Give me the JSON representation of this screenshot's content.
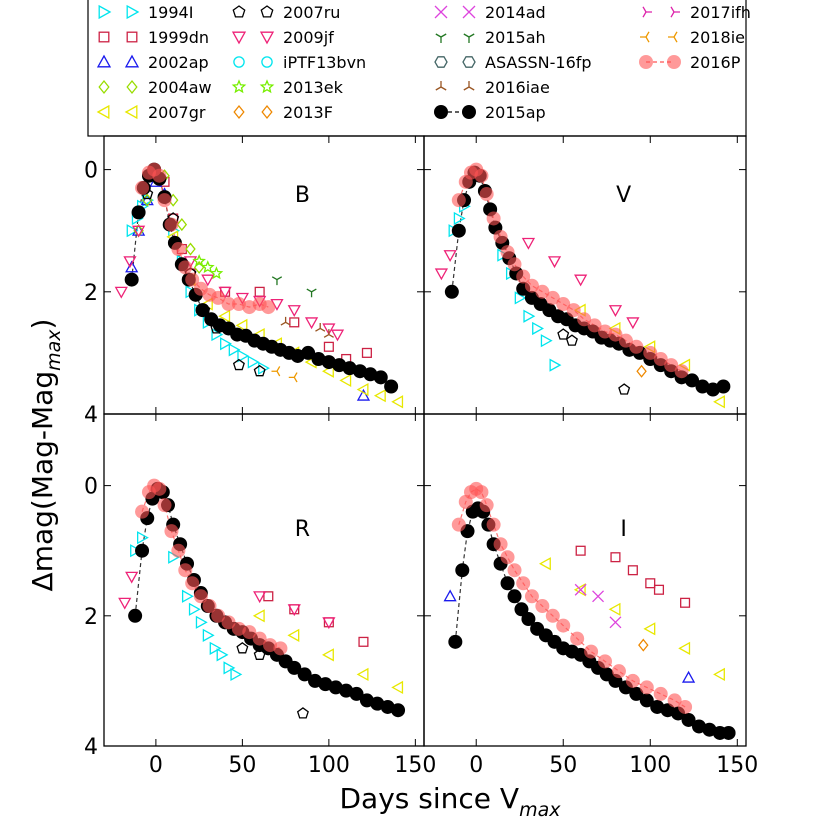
{
  "chart_data": {
    "type": "scatter",
    "xlabel": "Days since V",
    "xlabel_sub": "max",
    "ylabel": "Δmag(Mag-Mag",
    "ylabel_sub": "max",
    "ylabel_end": ")",
    "xlim": [
      -30,
      155
    ],
    "ylim": [
      4,
      -1.1
    ],
    "x_ticks": [
      0,
      50,
      100,
      150
    ],
    "y_ticks": [
      0,
      2,
      4
    ],
    "panels": [
      {
        "label": "B",
        "position": "top-left"
      },
      {
        "label": "V",
        "position": "top-right"
      },
      {
        "label": "R",
        "position": "bottom-left"
      },
      {
        "label": "I",
        "position": "bottom-right"
      }
    ],
    "legend": [
      {
        "name": "1994I",
        "marker": "tri-right",
        "color": "#00e5ee"
      },
      {
        "name": "1999dn",
        "marker": "square",
        "color": "#cc2244"
      },
      {
        "name": "2002ap",
        "marker": "tri-up",
        "color": "#1a1aee"
      },
      {
        "name": "2004aw",
        "marker": "diamond",
        "color": "#99dd00"
      },
      {
        "name": "2007gr",
        "marker": "tri-left",
        "color": "#e8e800"
      },
      {
        "name": "2007ru",
        "marker": "pentagon",
        "color": "#000000"
      },
      {
        "name": "2009jf",
        "marker": "tri-down",
        "color": "#ee2277"
      },
      {
        "name": "iPTF13bvn",
        "marker": "circle",
        "color": "#00e5ee"
      },
      {
        "name": "2013ek",
        "marker": "star",
        "color": "#77ee00"
      },
      {
        "name": "2013F",
        "marker": "diamond",
        "color": "#ee8800"
      },
      {
        "name": "2014ad",
        "marker": "x",
        "color": "#dd44dd"
      },
      {
        "name": "2015ah",
        "marker": "y-down",
        "color": "#227722"
      },
      {
        "name": "ASASSN-16fp",
        "marker": "hexagon",
        "color": "#446666"
      },
      {
        "name": "2016iae",
        "marker": "y-up",
        "color": "#995522"
      },
      {
        "name": "2015ap",
        "marker": "filled-circle-line",
        "color": "#000000"
      },
      {
        "name": "2017ifh",
        "marker": "y-left",
        "color": "#dd22aa"
      },
      {
        "name": "2018ie",
        "marker": "y-right",
        "color": "#ee9900"
      },
      {
        "name": "2016P",
        "marker": "filled-circle-line-alpha",
        "color": "#ff5555"
      }
    ],
    "series": [
      {
        "name": "2015ap",
        "band": "B",
        "x": [
          -14,
          -10,
          -7,
          -4,
          -1,
          2,
          5,
          8,
          11,
          15,
          19,
          23,
          27,
          32,
          37,
          42,
          47,
          52,
          57,
          62,
          67,
          72,
          77,
          82,
          88,
          94,
          100,
          106,
          112,
          118,
          124,
          130,
          136
        ],
        "y": [
          1.8,
          0.7,
          0.3,
          0.1,
          0.0,
          0.15,
          0.45,
          0.9,
          1.2,
          1.55,
          1.8,
          2.05,
          2.3,
          2.45,
          2.55,
          2.6,
          2.7,
          2.72,
          2.8,
          2.85,
          2.9,
          2.95,
          3.0,
          3.05,
          3.0,
          3.1,
          3.15,
          3.2,
          3.25,
          3.3,
          3.35,
          3.4,
          3.55
        ]
      },
      {
        "name": "2016P",
        "band": "B",
        "x": [
          -8,
          -4,
          -1,
          2,
          5,
          9,
          13,
          17,
          21,
          26,
          31,
          36,
          42,
          48,
          54,
          60,
          65
        ],
        "y": [
          0.3,
          0.05,
          0.0,
          0.1,
          0.5,
          0.9,
          1.3,
          1.6,
          1.8,
          1.95,
          2.05,
          2.1,
          2.2,
          2.2,
          2.25,
          2.2,
          2.25
        ]
      },
      {
        "name": "1994I",
        "band": "B",
        "x": [
          -14,
          -11,
          -8,
          -5,
          10,
          15,
          20,
          25,
          30,
          35,
          40,
          45,
          50,
          56,
          62
        ],
        "y": [
          1.0,
          0.8,
          0.6,
          0.5,
          1.0,
          1.5,
          2.0,
          2.3,
          2.5,
          2.7,
          2.85,
          2.95,
          3.05,
          3.15,
          3.25
        ]
      },
      {
        "name": "1999dn",
        "band": "B",
        "x": [
          5,
          10,
          15,
          20,
          40,
          60,
          80,
          100,
          110,
          122
        ],
        "y": [
          0.2,
          0.8,
          1.3,
          1.7,
          2.0,
          2.0,
          2.5,
          2.9,
          3.1,
          3.0
        ]
      },
      {
        "name": "2002ap",
        "band": "B",
        "x": [
          -14,
          -10,
          -5,
          0,
          5,
          120
        ],
        "y": [
          1.6,
          1.0,
          0.5,
          0.2,
          0.4,
          3.7
        ]
      },
      {
        "name": "2004aw",
        "band": "B",
        "x": [
          -10,
          -5,
          0,
          5,
          10,
          15,
          20,
          25
        ],
        "y": [
          1.0,
          0.5,
          0.1,
          0.1,
          0.5,
          0.9,
          1.3,
          1.6
        ]
      },
      {
        "name": "2007gr",
        "band": "B",
        "x": [
          10,
          20,
          30,
          40,
          50,
          60,
          70,
          80,
          90,
          100,
          110,
          120,
          130,
          140
        ],
        "y": [
          1.1,
          1.8,
          2.2,
          2.4,
          2.55,
          2.7,
          2.85,
          3.0,
          3.15,
          3.3,
          3.45,
          3.6,
          3.7,
          3.8
        ]
      },
      {
        "name": "2007ru",
        "band": "B",
        "x": [
          -5,
          0,
          10,
          20,
          28,
          35,
          48,
          60
        ],
        "y": [
          0.4,
          0.1,
          0.8,
          1.7,
          2.3,
          2.6,
          3.2,
          3.3
        ]
      },
      {
        "name": "2009jf",
        "band": "B",
        "x": [
          -20,
          -15,
          -10,
          20,
          30,
          40,
          50,
          60,
          70,
          80,
          90,
          100,
          105
        ],
        "y": [
          2.0,
          1.5,
          1.0,
          1.5,
          1.8,
          2.0,
          2.1,
          2.15,
          2.2,
          2.3,
          2.5,
          2.6,
          2.7
        ]
      },
      {
        "name": "2013ek",
        "band": "B",
        "x": [
          25,
          30,
          35
        ],
        "y": [
          1.5,
          1.6,
          1.7
        ]
      },
      {
        "name": "2015ah",
        "band": "B",
        "x": [
          70,
          90
        ],
        "y": [
          1.8,
          2.0
        ]
      },
      {
        "name": "2016iae",
        "band": "B",
        "x": [
          75,
          95,
          100
        ],
        "y": [
          2.5,
          2.6,
          2.7
        ]
      },
      {
        "name": "2018ie",
        "band": "B",
        "x": [
          70,
          80
        ],
        "y": [
          3.3,
          3.4
        ]
      },
      {
        "name": "2015ap",
        "band": "V",
        "x": [
          -14,
          -10,
          -7,
          -4,
          -1,
          2,
          5,
          8,
          11,
          15,
          19,
          23,
          27,
          32,
          37,
          42,
          47,
          52,
          57,
          62,
          67,
          72,
          77,
          82,
          88,
          94,
          100,
          106,
          112,
          118,
          124,
          130,
          136,
          142
        ],
        "y": [
          2.0,
          1.0,
          0.5,
          0.2,
          0.05,
          0.1,
          0.35,
          0.65,
          0.95,
          1.2,
          1.45,
          1.7,
          1.95,
          2.1,
          2.2,
          2.3,
          2.4,
          2.45,
          2.55,
          2.6,
          2.65,
          2.75,
          2.8,
          2.85,
          2.95,
          3.0,
          3.1,
          3.2,
          3.3,
          3.4,
          3.45,
          3.55,
          3.6,
          3.55
        ]
      },
      {
        "name": "2016P",
        "band": "V",
        "x": [
          -10,
          -6,
          -3,
          0,
          3,
          6,
          10,
          14,
          18,
          22,
          27,
          32,
          38,
          44,
          50,
          56,
          62,
          68,
          74,
          80,
          86,
          92,
          100,
          106,
          112,
          118
        ],
        "y": [
          0.5,
          0.2,
          0.05,
          0.0,
          0.1,
          0.4,
          0.8,
          1.1,
          1.35,
          1.55,
          1.75,
          1.9,
          2.0,
          2.1,
          2.2,
          2.3,
          2.45,
          2.55,
          2.65,
          2.7,
          2.8,
          2.9,
          3.0,
          3.1,
          3.2,
          3.3
        ]
      },
      {
        "name": "1994I",
        "band": "V",
        "x": [
          -13,
          -10,
          -7,
          15,
          20,
          25,
          30,
          35,
          40,
          45
        ],
        "y": [
          1.0,
          0.8,
          0.6,
          1.4,
          1.7,
          2.1,
          2.4,
          2.6,
          2.8,
          3.2
        ]
      },
      {
        "name": "2007ru",
        "band": "V",
        "x": [
          50,
          55,
          85
        ],
        "y": [
          2.7,
          2.8,
          3.6
        ]
      },
      {
        "name": "2009jf",
        "band": "V",
        "x": [
          -20,
          -15,
          30,
          45,
          60,
          80,
          90
        ],
        "y": [
          1.7,
          1.4,
          1.2,
          1.5,
          1.8,
          2.3,
          2.5
        ]
      },
      {
        "name": "2013F",
        "band": "V",
        "x": [
          95
        ],
        "y": [
          3.3
        ]
      },
      {
        "name": "2007gr",
        "band": "V",
        "x": [
          60,
          80,
          100,
          120,
          140
        ],
        "y": [
          2.3,
          2.6,
          2.9,
          3.2,
          3.8
        ]
      },
      {
        "name": "2015ap",
        "band": "R",
        "x": [
          -12,
          -8,
          -5,
          -2,
          1,
          4,
          7,
          10,
          14,
          18,
          22,
          26,
          30,
          35,
          40,
          45,
          50,
          55,
          60,
          65,
          70,
          75,
          80,
          86,
          92,
          98,
          104,
          110,
          116,
          122,
          128,
          134,
          140
        ],
        "y": [
          2.0,
          1.0,
          0.5,
          0.2,
          0.05,
          0.1,
          0.3,
          0.6,
          0.9,
          1.2,
          1.45,
          1.65,
          1.85,
          2.0,
          2.1,
          2.2,
          2.25,
          2.35,
          2.45,
          2.5,
          2.6,
          2.7,
          2.8,
          2.9,
          3.0,
          3.05,
          3.1,
          3.15,
          3.2,
          3.3,
          3.35,
          3.4,
          3.45
        ]
      },
      {
        "name": "2016P",
        "band": "R",
        "x": [
          -8,
          -4,
          -1,
          2,
          5,
          9,
          13,
          17,
          21,
          26,
          31,
          36,
          42,
          48,
          54,
          60,
          66,
          72
        ],
        "y": [
          0.4,
          0.1,
          0.0,
          0.05,
          0.3,
          0.7,
          1.0,
          1.3,
          1.5,
          1.7,
          1.85,
          2.0,
          2.1,
          2.2,
          2.25,
          2.35,
          2.45,
          2.5
        ]
      },
      {
        "name": "1994I",
        "band": "R",
        "x": [
          -12,
          -8,
          10,
          18,
          22,
          26,
          30,
          34,
          38,
          42,
          46
        ],
        "y": [
          1.0,
          0.8,
          1.1,
          1.7,
          1.9,
          2.1,
          2.3,
          2.5,
          2.6,
          2.8,
          2.9
        ]
      },
      {
        "name": "1999dn",
        "band": "R",
        "x": [
          65,
          80,
          100,
          120
        ],
        "y": [
          1.7,
          1.9,
          2.1,
          2.4
        ]
      },
      {
        "name": "2007ru",
        "band": "R",
        "x": [
          50,
          60,
          85
        ],
        "y": [
          2.5,
          2.6,
          3.5
        ]
      },
      {
        "name": "2007gr",
        "band": "R",
        "x": [
          60,
          80,
          100,
          120,
          140
        ],
        "y": [
          2.0,
          2.3,
          2.6,
          2.9,
          3.1
        ]
      },
      {
        "name": "2009jf",
        "band": "R",
        "x": [
          -18,
          -14,
          60,
          80,
          100
        ],
        "y": [
          1.8,
          1.4,
          1.7,
          1.9,
          2.1
        ]
      },
      {
        "name": "2015ap",
        "band": "I",
        "x": [
          -12,
          -8,
          -5,
          -2,
          1,
          4,
          7,
          10,
          14,
          18,
          22,
          26,
          30,
          35,
          40,
          45,
          50,
          55,
          60,
          65,
          70,
          75,
          80,
          86,
          92,
          98,
          104,
          110,
          116,
          122,
          128,
          134,
          140,
          145
        ],
        "y": [
          2.4,
          1.3,
          0.7,
          0.4,
          0.35,
          0.4,
          0.6,
          0.9,
          1.2,
          1.5,
          1.7,
          1.9,
          2.05,
          2.2,
          2.3,
          2.4,
          2.5,
          2.55,
          2.6,
          2.7,
          2.8,
          2.9,
          3.0,
          3.1,
          3.2,
          3.3,
          3.4,
          3.45,
          3.5,
          3.6,
          3.7,
          3.75,
          3.8,
          3.8
        ]
      },
      {
        "name": "2016P",
        "band": "I",
        "x": [
          -10,
          -6,
          -3,
          0,
          3,
          6,
          10,
          14,
          18,
          22,
          27,
          32,
          38,
          44,
          50,
          58,
          66,
          74,
          82,
          90,
          98,
          106,
          114,
          120
        ],
        "y": [
          0.6,
          0.25,
          0.1,
          0.05,
          0.1,
          0.3,
          0.6,
          0.9,
          1.1,
          1.3,
          1.5,
          1.7,
          1.85,
          2.0,
          2.15,
          2.35,
          2.55,
          2.7,
          2.85,
          3.0,
          3.1,
          3.2,
          3.3,
          3.4
        ]
      },
      {
        "name": "2007gr",
        "band": "I",
        "x": [
          40,
          60,
          80,
          100,
          120,
          140
        ],
        "y": [
          1.2,
          1.6,
          1.9,
          2.2,
          2.5,
          2.9
        ]
      },
      {
        "name": "1999dn",
        "band": "I",
        "x": [
          60,
          80,
          90,
          100,
          105,
          120
        ],
        "y": [
          1.0,
          1.1,
          1.3,
          1.5,
          1.6,
          1.8
        ]
      },
      {
        "name": "2014ad",
        "band": "I",
        "x": [
          60,
          70,
          80
        ],
        "y": [
          1.6,
          1.7,
          2.1
        ]
      },
      {
        "name": "2002ap",
        "band": "I",
        "x": [
          -15,
          122
        ],
        "y": [
          1.7,
          2.95
        ]
      },
      {
        "name": "2013F",
        "band": "I",
        "x": [
          96
        ],
        "y": [
          2.45
        ]
      }
    ]
  }
}
